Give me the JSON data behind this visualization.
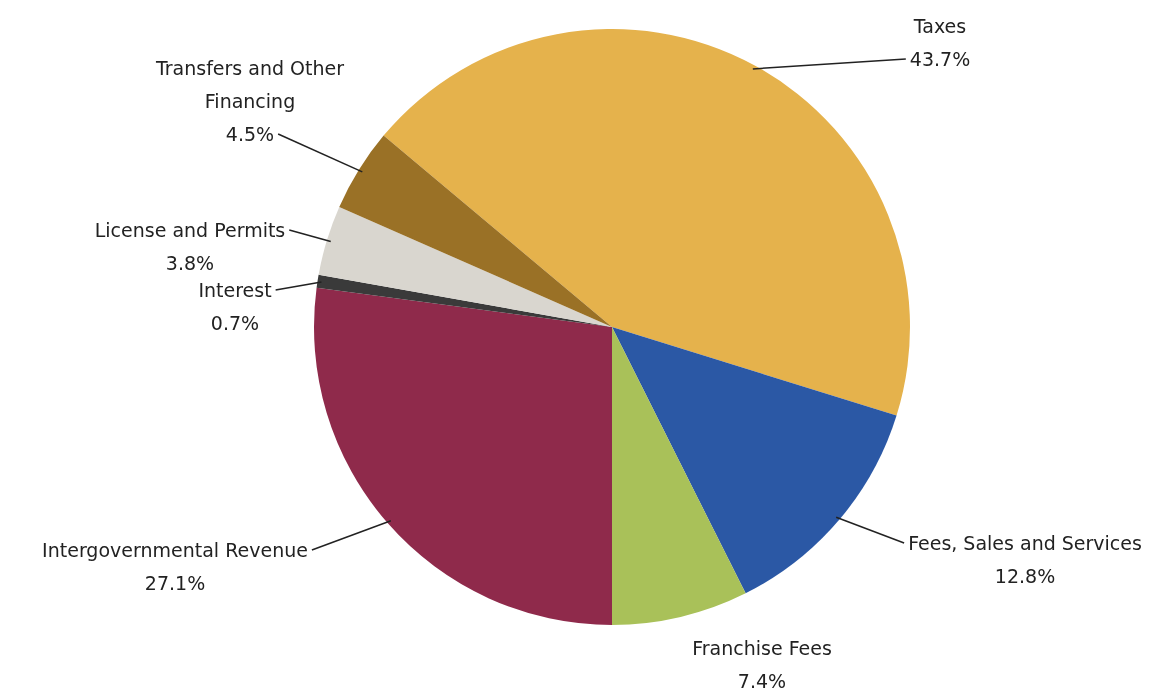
{
  "chart_data": {
    "type": "pie",
    "categories": [
      "Taxes",
      "Fees, Sales and Services",
      "Franchise Fees",
      "Intergovernmental Revenue",
      "Interest",
      "License and Permits",
      "Transfers and Other Financing"
    ],
    "values": [
      43.7,
      12.8,
      7.4,
      27.1,
      0.7,
      3.8,
      4.5
    ],
    "value_labels": [
      "43.7%",
      "12.8%",
      "7.4%",
      "27.1%",
      "0.7%",
      "3.8%",
      "4.5%"
    ],
    "colors": [
      "#e5b24c",
      "#2b58a5",
      "#a9c159",
      "#8f2a4b",
      "#3a3a3a",
      "#d9d6cf",
      "#9a7126"
    ],
    "legend": false
  }
}
